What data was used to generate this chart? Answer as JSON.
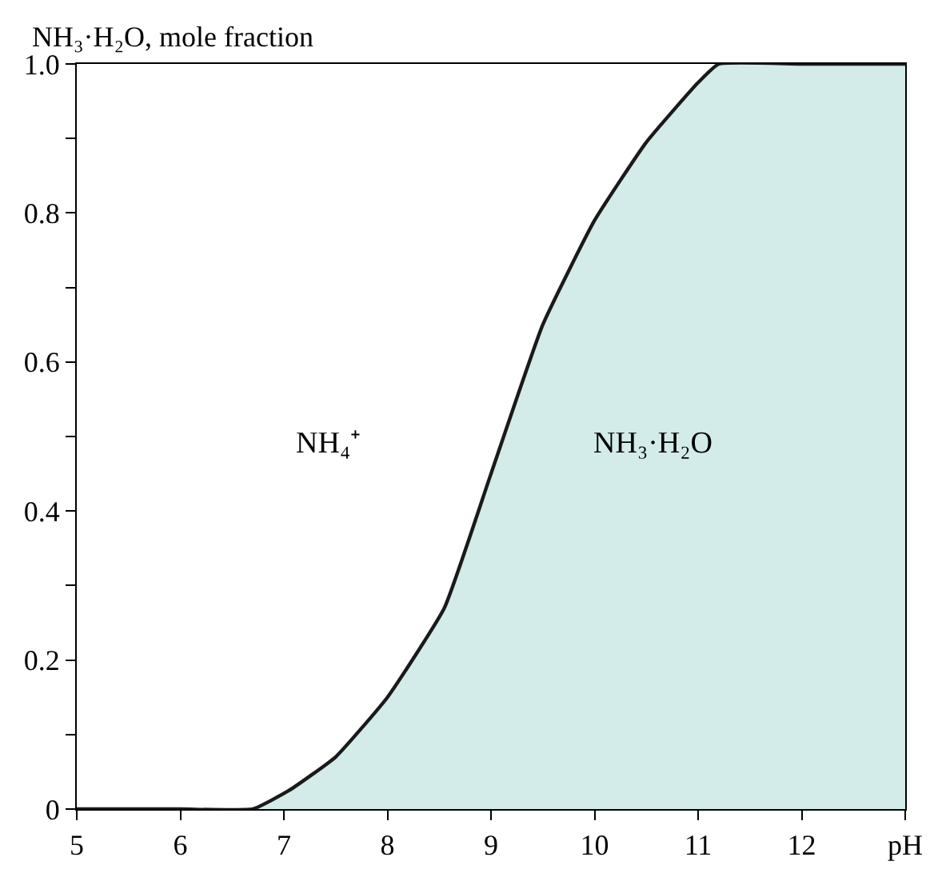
{
  "chart_data": {
    "type": "area",
    "ylabel": "NH₃·H₂O, mole fraction",
    "x": [
      5,
      6,
      6.7,
      7.05,
      7.5,
      8,
      8.55,
      9,
      9.5,
      10,
      10.5,
      11,
      11.2,
      12,
      13
    ],
    "series": [
      {
        "color": "#d3ebe9",
        "values": [
          0,
          0,
          0,
          0.025,
          0.07,
          0.15,
          0.27,
          0.45,
          0.65,
          0.79,
          0.895,
          0.975,
          1,
          1,
          1
        ]
      }
    ],
    "xlim": [
      5,
      13
    ],
    "xticks": [
      5,
      6,
      7,
      8,
      9,
      10,
      11,
      12,
      {
        "value": 13,
        "label": "pH"
      }
    ],
    "ylim": [
      0,
      1
    ],
    "yticks": [
      0,
      {
        "value": 0.1,
        "label": null
      },
      0.2,
      {
        "value": 0.3,
        "label": null
      },
      0.4,
      {
        "value": 0.5,
        "label": null
      },
      0.6,
      {
        "value": 0.7,
        "label": null
      },
      0.8,
      {
        "value": 0.9,
        "label": null
      },
      {
        "value": 1,
        "label": "1.0"
      }
    ],
    "annotations": [
      "NH₄⁺",
      "NH₃·H₂O"
    ],
    "legend": false
  }
}
